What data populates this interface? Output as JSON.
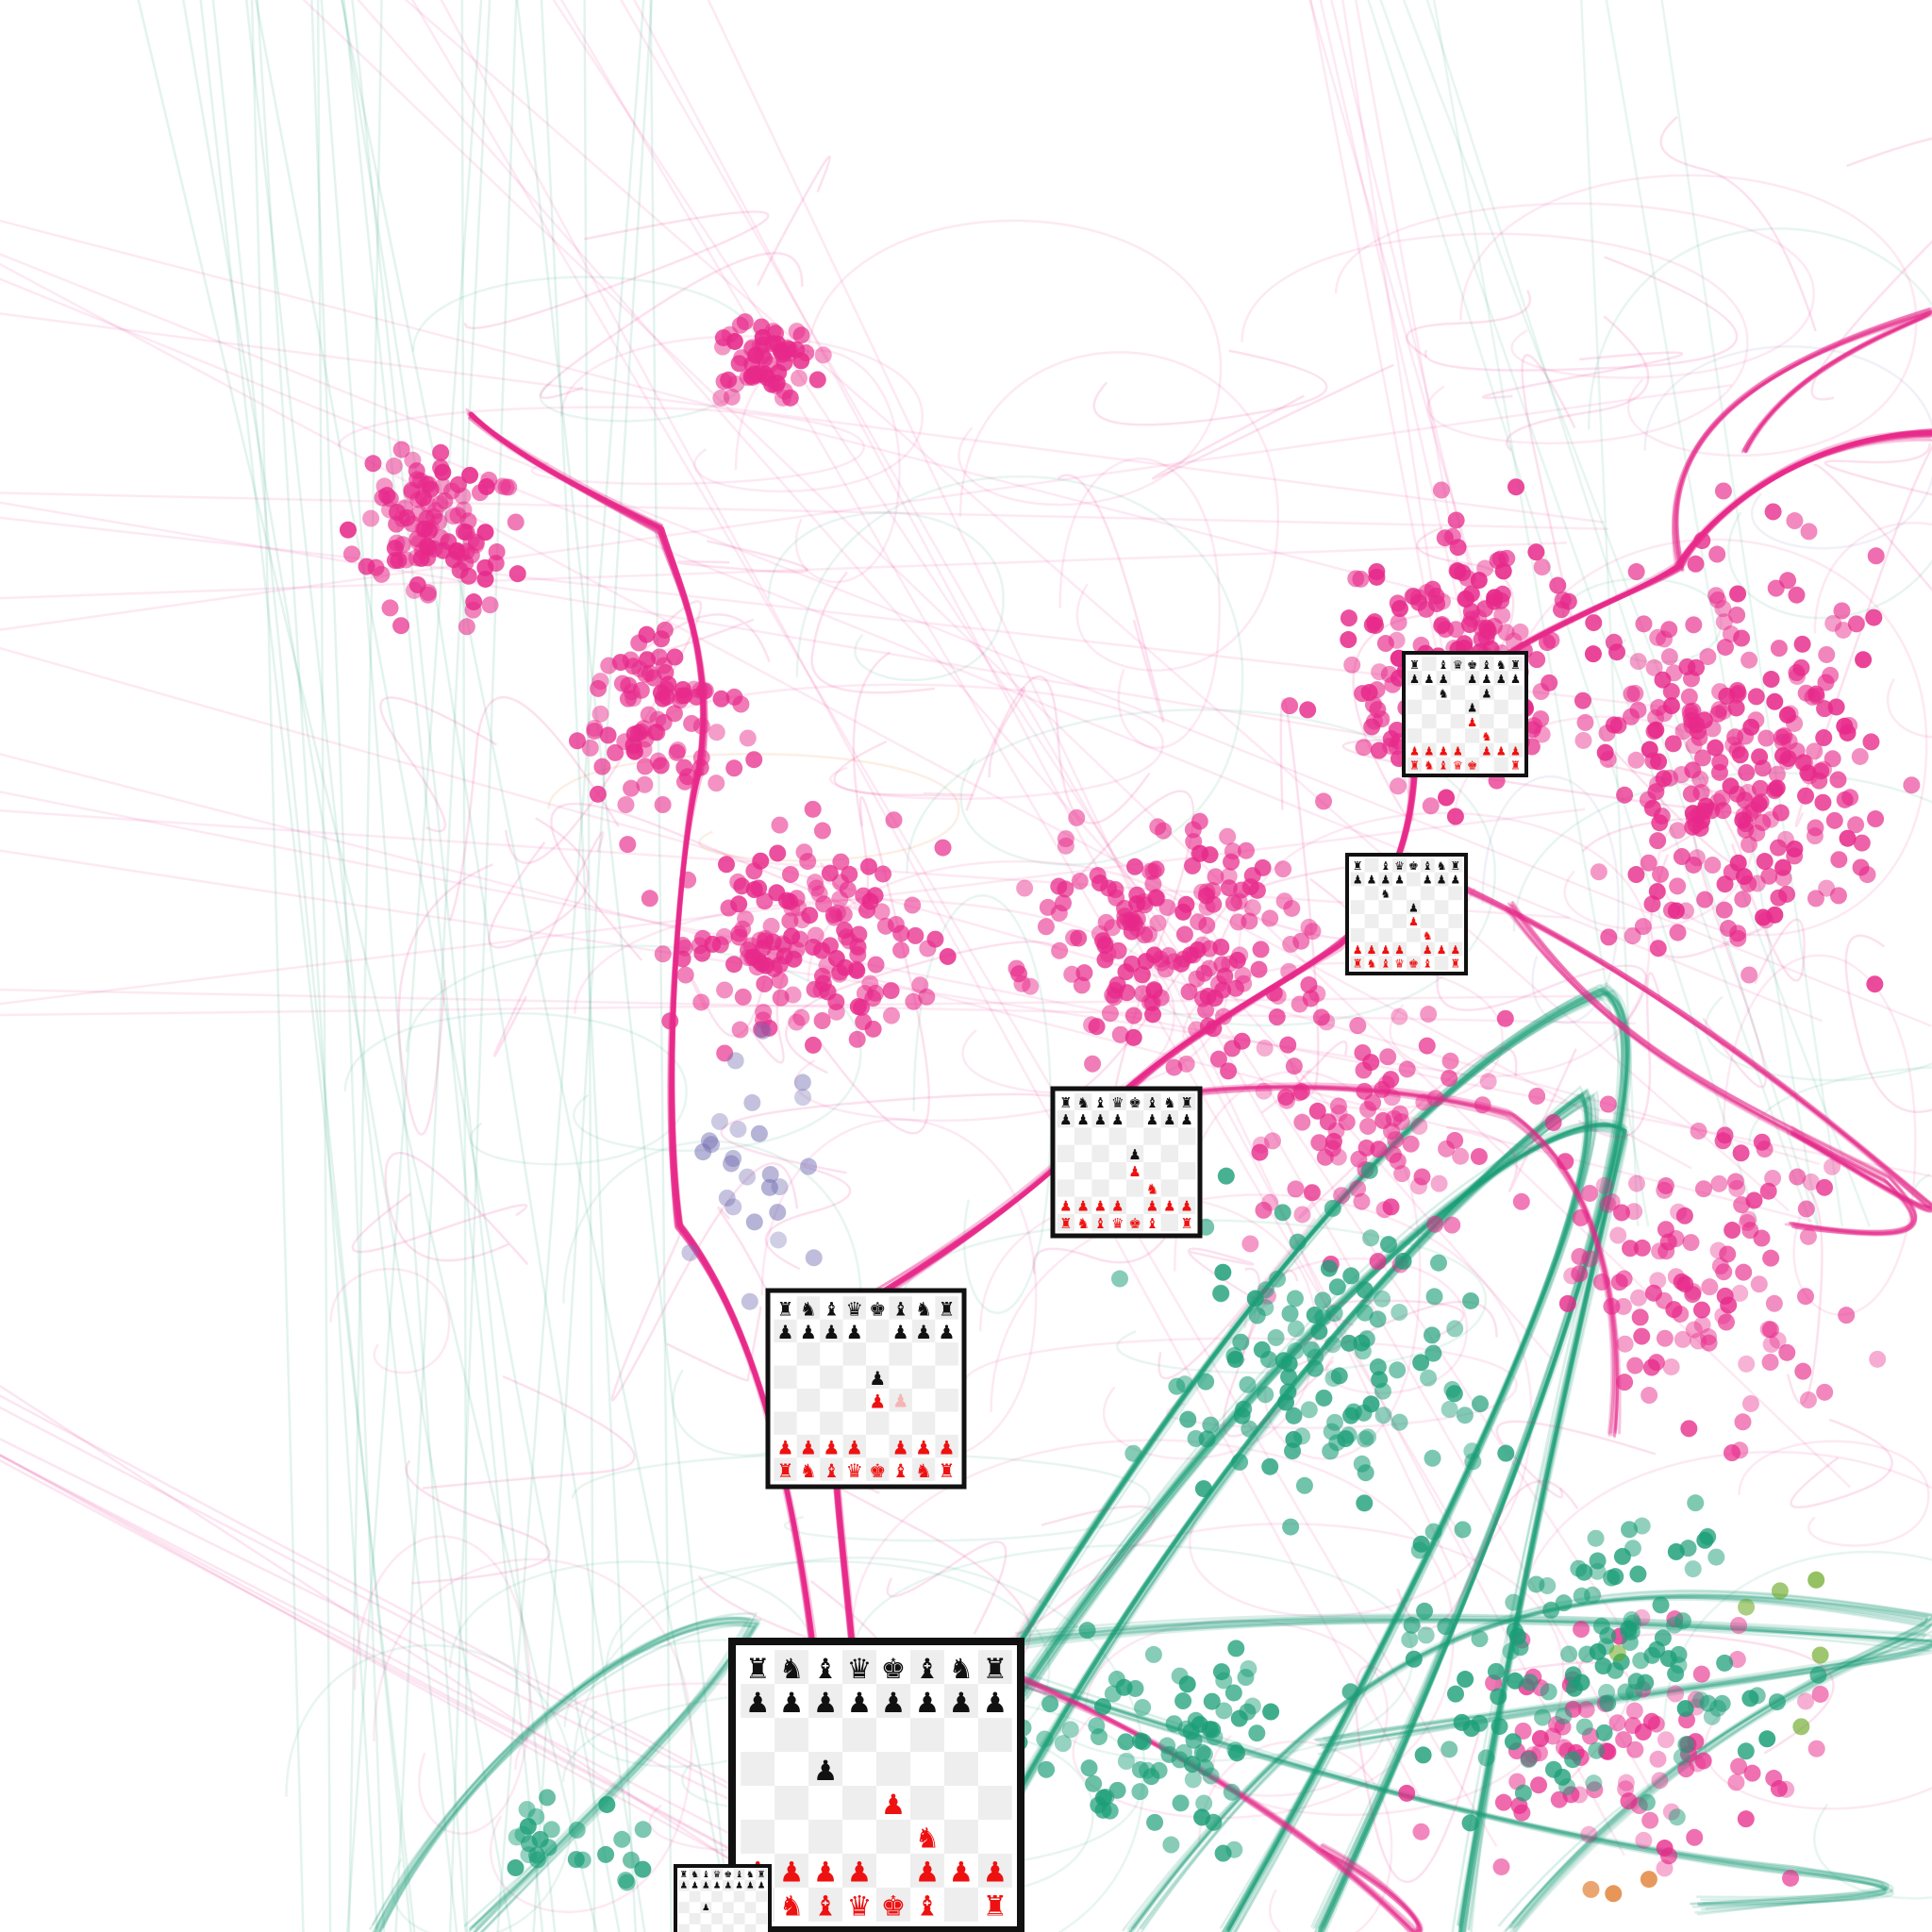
{
  "view": {
    "background": "#ffffff",
    "primary_color": "#e7298a",
    "secondary_color": "#1b9e77",
    "minor_colors": [
      "#7570b3",
      "#66a61e",
      "#d95f02"
    ]
  },
  "boards": [
    {
      "name": "start-position-board",
      "rows": [
        "♜♞♝♛♚♝♞♜",
        "♟♟♟♟♟♟♟♟",
        "        ",
        "  ♟     ",
        "    ♟   ",
        "     ♞  ",
        "♟♟♟♟ ♟♟♟",
        "♜♞♝♛♚♝ ♜"
      ],
      "ghost_rows": [
        "        ",
        "        ",
        "        ",
        "  ♟     ",
        "        ",
        "        ",
        "        ",
        "        "
      ],
      "border_weight": "heavy"
    },
    {
      "name": "e4-e5-board",
      "rows": [
        "♜♞♝♛♚♝♞♜",
        "♟♟♟♟ ♟♟♟",
        "        ",
        "    ♟   ",
        "    ♟   ",
        "        ",
        "♟♟♟♟ ♟♟♟",
        "♜♞♝♛♚♝♞♜"
      ],
      "ghost_rows": [
        "        ",
        "        ",
        "        ",
        "        ",
        "     ♟  ",
        "        ",
        "        ",
        "        "
      ],
      "border_weight": "medium"
    },
    {
      "name": "nf3-board",
      "rows": [
        "♜♞♝♛♚♝♞♜",
        "♟♟♟♟ ♟♟♟",
        "        ",
        "    ♟   ",
        "    ♟   ",
        "     ♞  ",
        "♟♟♟♟ ♟♟♟",
        "♜♞♝♛♚♝ ♜"
      ],
      "ghost_rows": [
        "        ",
        "        ",
        "        ",
        "        ",
        "        ",
        "        ",
        "        ",
        "        "
      ],
      "border_weight": "medium"
    },
    {
      "name": "nc6-board",
      "rows": [
        "♜ ♝♛♚♝♞♜",
        "♟♟♟♟ ♟♟♟",
        "  ♞     ",
        "    ♟   ",
        "    ♟   ",
        "     ♞  ",
        "♟♟♟♟ ♟♟♟",
        "♜♞♝♛♚♝ ♜"
      ],
      "ghost_rows": [
        "        ",
        "        ",
        "        ",
        "        ",
        "        ",
        "        ",
        "        ",
        "        "
      ],
      "border_weight": "thin"
    },
    {
      "name": "bb5-board",
      "rows": [
        "♜ ♝♛♚♝♞♜",
        "♟♟♟ ♟♟♟♟",
        "  ♞  ♟  ",
        "    ♟   ",
        "    ♟   ",
        "     ♞  ",
        "♟♟♟♟ ♟♟♟",
        "♜♞♝♛♚  ♜"
      ],
      "ghost_rows": [
        "        ",
        "        ",
        "  ♟     ",
        "        ",
        "        ",
        "        ",
        "        ",
        "        "
      ],
      "border_weight": "thin"
    },
    {
      "name": "partial-board",
      "rows": [
        "♜♞♝♛♚♝♞♜",
        "♟♟♟♟♟♟♟♟",
        "        ",
        "  ♟     ",
        "        ",
        "        ",
        "        ",
        "        "
      ],
      "ghost_rows": [
        "        ",
        "        ",
        "        ",
        "        ",
        "        ",
        "        ",
        "        ",
        "        "
      ],
      "border_weight": "thin"
    }
  ]
}
